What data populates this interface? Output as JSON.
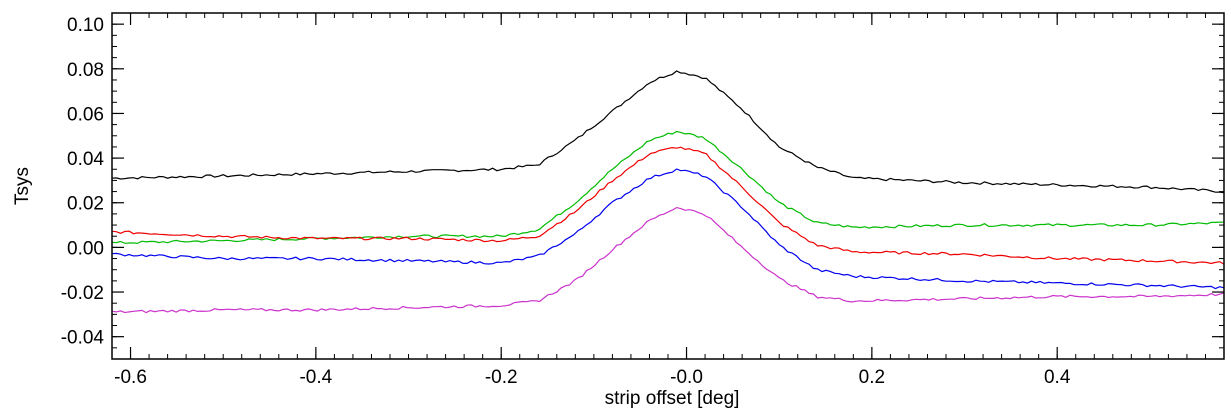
{
  "chart_data": {
    "type": "line",
    "title": "",
    "xlabel": "strip offset [deg]",
    "ylabel": "Tsys",
    "xlim": [
      -0.62,
      0.58
    ],
    "ylim": [
      -0.05,
      0.105
    ],
    "xticks": [
      -0.6,
      -0.4,
      -0.2,
      0.0,
      0.2,
      0.4
    ],
    "xtick_labels": [
      "-0.6",
      "-0.4",
      "-0.2",
      "-0.0",
      "0.2",
      "0.4"
    ],
    "yticks": [
      -0.04,
      -0.02,
      0.0,
      0.02,
      0.04,
      0.06,
      0.08,
      0.1
    ],
    "ytick_labels": [
      "-0.04",
      "-0.02",
      "0.00",
      "0.02",
      "0.04",
      "0.06",
      "0.08",
      "0.10"
    ],
    "grid": false,
    "x": [
      -0.62,
      -0.5,
      -0.4,
      -0.3,
      -0.2,
      -0.16,
      -0.12,
      -0.08,
      -0.04,
      -0.01,
      0.02,
      0.06,
      0.1,
      0.14,
      0.18,
      0.3,
      0.4,
      0.5,
      0.58
    ],
    "series": [
      {
        "color": "#000000",
        "values": [
          0.031,
          0.032,
          0.033,
          0.034,
          0.035,
          0.037,
          0.048,
          0.061,
          0.074,
          0.079,
          0.076,
          0.062,
          0.045,
          0.036,
          0.031,
          0.029,
          0.028,
          0.027,
          0.025
        ]
      },
      {
        "color": "#00bb00",
        "values": [
          0.002,
          0.003,
          0.004,
          0.005,
          0.005,
          0.008,
          0.02,
          0.035,
          0.048,
          0.052,
          0.049,
          0.035,
          0.02,
          0.011,
          0.009,
          0.01,
          0.01,
          0.01,
          0.011
        ]
      },
      {
        "color": "#ee0000",
        "values": [
          0.007,
          0.005,
          0.004,
          0.004,
          0.003,
          0.005,
          0.016,
          0.03,
          0.042,
          0.045,
          0.042,
          0.027,
          0.011,
          0.001,
          -0.002,
          -0.003,
          -0.005,
          -0.006,
          -0.007
        ]
      },
      {
        "color": "#0000ee",
        "values": [
          -0.003,
          -0.005,
          -0.005,
          -0.006,
          -0.007,
          -0.004,
          0.006,
          0.02,
          0.031,
          0.035,
          0.032,
          0.018,
          0.001,
          -0.01,
          -0.013,
          -0.015,
          -0.016,
          -0.017,
          -0.018
        ]
      },
      {
        "color": "#cc33cc",
        "values": [
          -0.029,
          -0.028,
          -0.028,
          -0.027,
          -0.026,
          -0.024,
          -0.015,
          -0.001,
          0.012,
          0.018,
          0.015,
          0.0,
          -0.014,
          -0.022,
          -0.024,
          -0.023,
          -0.022,
          -0.022,
          -0.021
        ]
      }
    ]
  }
}
